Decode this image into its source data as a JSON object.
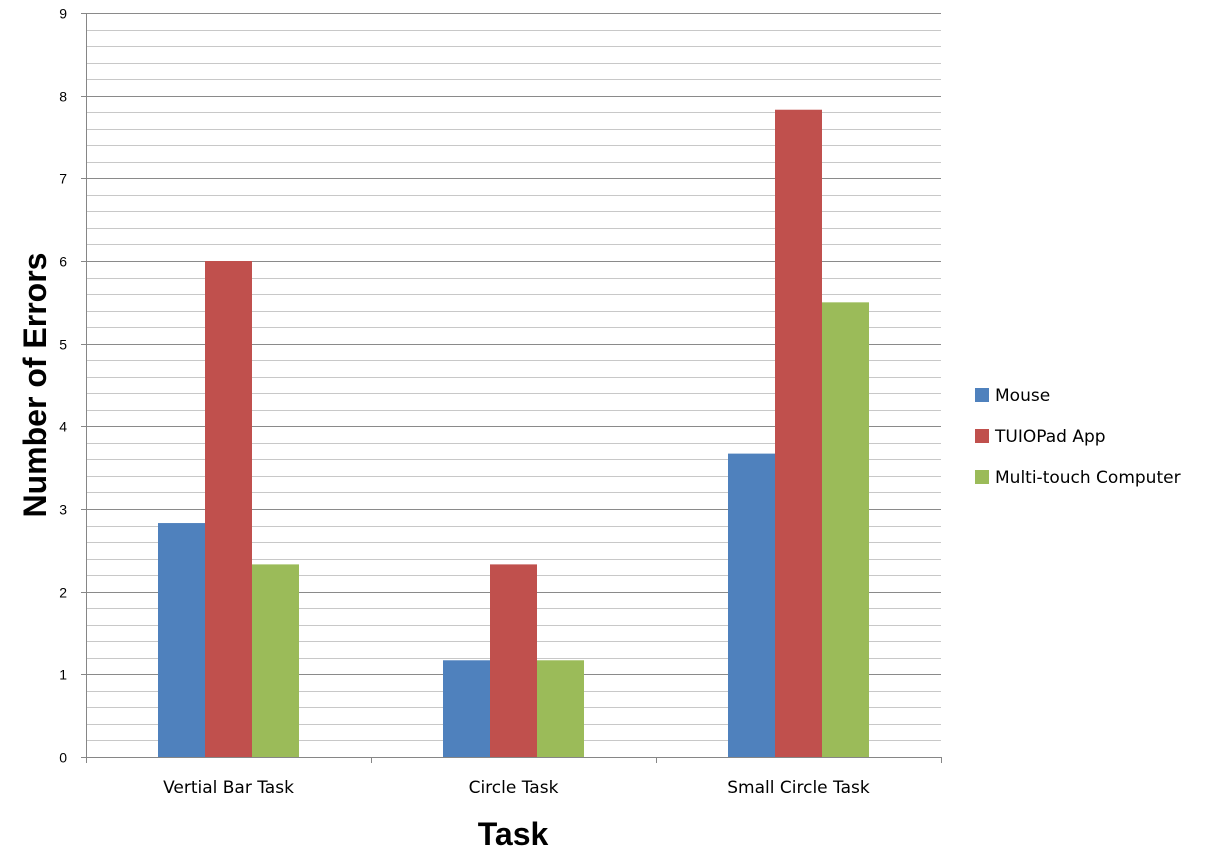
{
  "chart_data": {
    "type": "bar",
    "title": "",
    "xlabel": "Task",
    "ylabel": "Number of Errors",
    "categories": [
      "Vertial Bar Task",
      "Circle Task",
      "Small Circle Task"
    ],
    "series": [
      {
        "name": "Mouse",
        "color": "#4F81BD",
        "values": [
          2.83,
          1.17,
          3.67
        ]
      },
      {
        "name": "TUIOPad App",
        "color": "#C0504D",
        "values": [
          6.0,
          2.33,
          7.83
        ]
      },
      {
        "name": "Multi-touch Computer",
        "color": "#9BBB59",
        "values": [
          2.33,
          1.17,
          5.5
        ]
      }
    ],
    "ylim": [
      0,
      9
    ],
    "y_ticks": [
      0,
      1,
      2,
      3,
      4,
      5,
      6,
      7,
      8,
      9
    ],
    "minor_gridlines_per_unit": 5,
    "grid": true,
    "legend_position": "right"
  }
}
